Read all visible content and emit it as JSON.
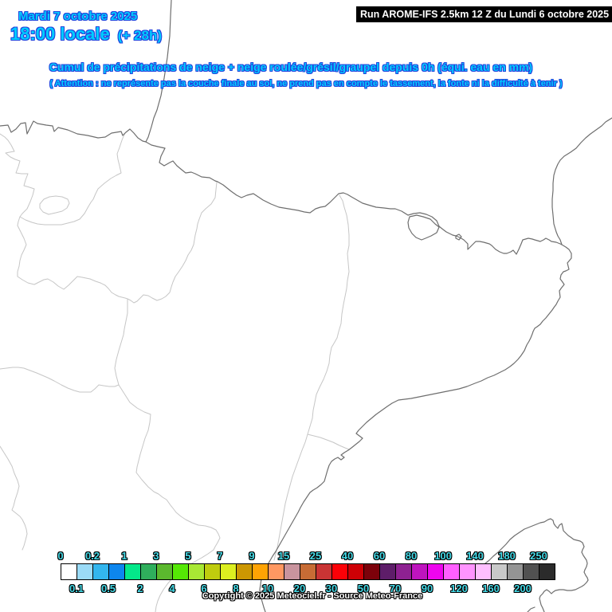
{
  "header": {
    "date_line": "Mardi 7 octobre 2025",
    "time_line": "18:00 locale",
    "time_offset": "(+ 28h)",
    "run_info": "Run AROME-IFS 2.5km 12 Z du Lundi 6 octobre 2025",
    "title": "Cumul de précipitations de neige + neige roulée/grésil/graupel depuis 0h (équi. eau en mm)",
    "warning": "( Attention : ne représente pas la couche finale au sol, ne prend pas en compte le tassement, la fonte ni la difficulté à tenir )"
  },
  "colors": {
    "header_text": "#00CCFF",
    "header_outline": "#2244DD",
    "label_text": "#44D9E6",
    "label_outline": "#000000",
    "run_box_bg": "#000000",
    "run_box_text": "#FFFFFF",
    "coastline": "#6E6E6E",
    "regional_border": "#C6C6C6"
  },
  "legend": {
    "unit": "mm (équivalent eau)",
    "cell_colors": [
      "#FFFFFF",
      "#9BDBF7",
      "#33B6EE",
      "#0D86EE",
      "#04E88A",
      "#2FAF5C",
      "#5BB82E",
      "#55E805",
      "#A8E834",
      "#BFCC0E",
      "#DCEE20",
      "#CC9702",
      "#FFA304",
      "#FF9862",
      "#C9949E",
      "#C76C35",
      "#C93434",
      "#FC0107",
      "#CE0005",
      "#7C010A",
      "#5E1D69",
      "#8E2191",
      "#BE14BE",
      "#EE05EE",
      "#FF5FFF",
      "#FF94FF",
      "#FFBFFF",
      "#C9C9C9",
      "#949494",
      "#515151",
      "#2B2B2B"
    ],
    "top_labels": [
      "0",
      "0.2",
      "1",
      "3",
      "5",
      "7",
      "9",
      "15",
      "25",
      "40",
      "60",
      "80",
      "100",
      "140",
      "180",
      "250"
    ],
    "bottom_labels": [
      "0.1",
      "0.5",
      "2",
      "4",
      "6",
      "8",
      "10",
      "20",
      "30",
      "50",
      "70",
      "90",
      "120",
      "160",
      "200"
    ]
  },
  "footer": {
    "copyright": "Copyright © 2025 Meteociel.fr - Source Meteo-France"
  }
}
